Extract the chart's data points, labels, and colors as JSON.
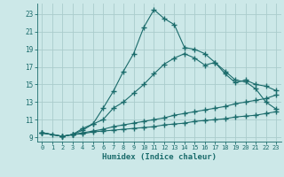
{
  "xlabel": "Humidex (Indice chaleur)",
  "bg_color": "#cce8e8",
  "grid_color": "#aacccc",
  "line_color": "#1a6b6b",
  "xlim": [
    -0.5,
    23.5
  ],
  "ylim": [
    8.5,
    24.2
  ],
  "xticks": [
    0,
    1,
    2,
    3,
    4,
    5,
    6,
    7,
    8,
    9,
    10,
    11,
    12,
    13,
    14,
    15,
    16,
    17,
    18,
    19,
    20,
    21,
    22,
    23
  ],
  "yticks": [
    9,
    11,
    13,
    15,
    17,
    19,
    21,
    23
  ],
  "line1_x": [
    0,
    1,
    2,
    3,
    4,
    5,
    6,
    7,
    8,
    9,
    10,
    11,
    12,
    13,
    14,
    15,
    16,
    17,
    18,
    19,
    20,
    21,
    22,
    23
  ],
  "line1_y": [
    9.5,
    9.3,
    9.1,
    9.3,
    10.0,
    10.5,
    12.3,
    14.2,
    16.5,
    18.5,
    21.5,
    23.5,
    22.5,
    21.8,
    19.2,
    19.0,
    18.5,
    17.5,
    16.5,
    15.5,
    15.3,
    14.5,
    13.0,
    12.2
  ],
  "line2_x": [
    0,
    2,
    3,
    4,
    5,
    6,
    7,
    8,
    9,
    10,
    11,
    12,
    13,
    14,
    15,
    16,
    17,
    18,
    19,
    20,
    21,
    22,
    23
  ],
  "line2_y": [
    9.5,
    9.1,
    9.3,
    9.8,
    10.5,
    11.0,
    12.3,
    13.0,
    14.0,
    15.0,
    16.2,
    17.3,
    18.0,
    18.5,
    18.0,
    17.2,
    17.5,
    16.2,
    15.2,
    15.5,
    15.0,
    14.8,
    14.3
  ],
  "line3_x": [
    0,
    2,
    3,
    4,
    5,
    6,
    7,
    8,
    9,
    10,
    11,
    12,
    13,
    14,
    15,
    16,
    17,
    18,
    19,
    20,
    21,
    22,
    23
  ],
  "line3_y": [
    9.5,
    9.1,
    9.3,
    9.5,
    9.7,
    9.9,
    10.2,
    10.4,
    10.6,
    10.8,
    11.0,
    11.2,
    11.5,
    11.7,
    11.9,
    12.1,
    12.3,
    12.5,
    12.8,
    13.0,
    13.2,
    13.4,
    13.8
  ],
  "line4_x": [
    0,
    2,
    3,
    4,
    5,
    6,
    7,
    8,
    9,
    10,
    11,
    12,
    13,
    14,
    15,
    16,
    17,
    18,
    19,
    20,
    21,
    22,
    23
  ],
  "line4_y": [
    9.5,
    9.1,
    9.3,
    9.4,
    9.6,
    9.7,
    9.8,
    9.9,
    10.0,
    10.1,
    10.2,
    10.4,
    10.5,
    10.6,
    10.8,
    10.9,
    11.0,
    11.1,
    11.3,
    11.4,
    11.5,
    11.7,
    11.9
  ]
}
